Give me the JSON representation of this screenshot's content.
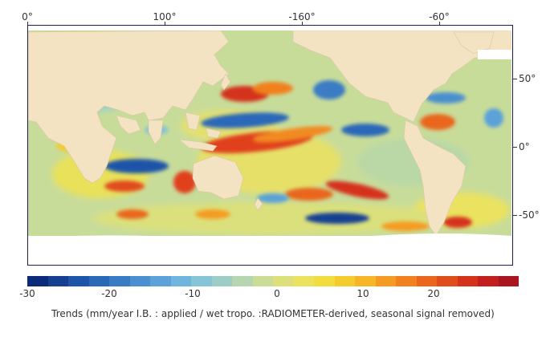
{
  "map": {
    "top_labels": [
      "0°",
      "100°",
      "-160°",
      "-60°"
    ],
    "right_labels": [
      "50°",
      "0°",
      "-50°"
    ],
    "land_color": "#f3e3c3",
    "ice_color": "#ffffff"
  },
  "colorbar": {
    "labels": [
      "-30",
      "-20",
      "-10",
      "0",
      "10",
      "20"
    ],
    "range": [
      -30,
      30
    ],
    "colors": [
      "#0b2b7a",
      "#163f92",
      "#1f55a8",
      "#2a68b8",
      "#3a7cc4",
      "#4a8fcf",
      "#5aa2d8",
      "#6fb5dd",
      "#86c4d6",
      "#9ecdc6",
      "#b5d6b0",
      "#cbdc96",
      "#dde07a",
      "#ebe35e",
      "#f2dd3f",
      "#f6cb2e",
      "#f7b528",
      "#f59b23",
      "#f1801f",
      "#ea661c",
      "#e14c1b",
      "#d5321c",
      "#c41f1f",
      "#a9161f"
    ]
  },
  "caption": "Trends (mm/year I.B. : applied / wet tropo. :RADIOMETER-derived, seasonal signal removed)"
}
